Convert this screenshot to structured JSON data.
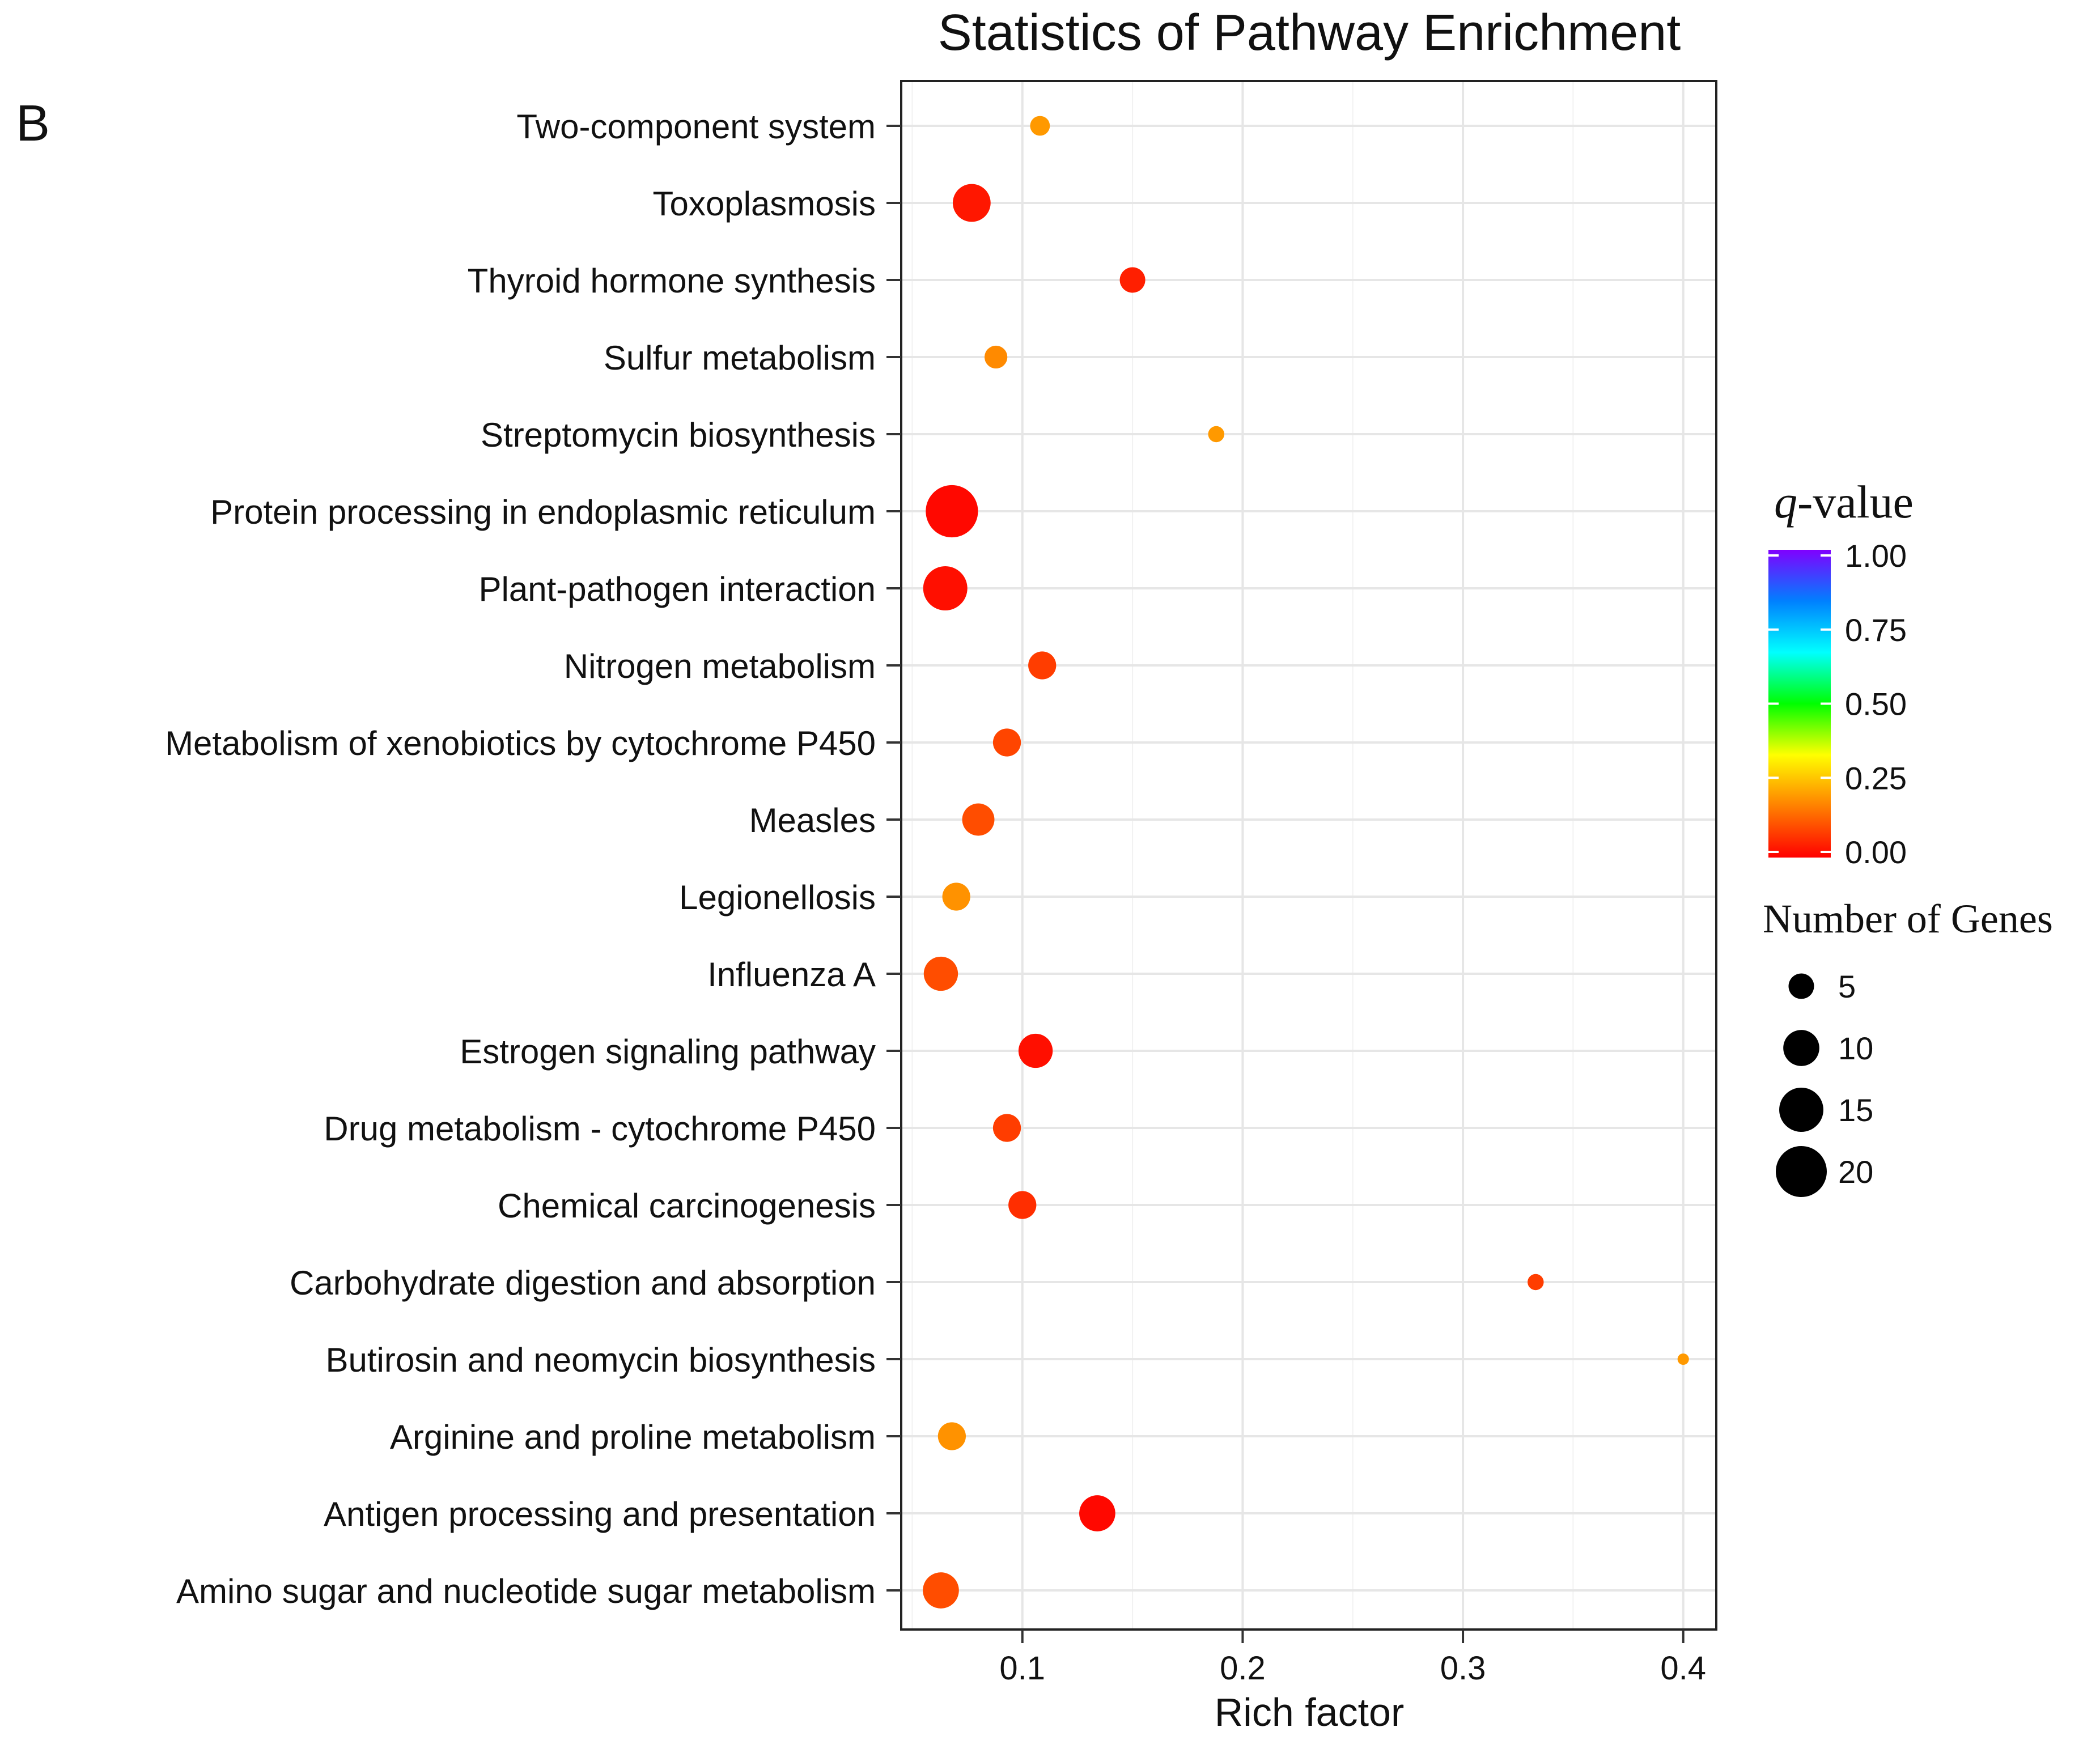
{
  "panel_label": "B",
  "chart_data": {
    "type": "scatter",
    "title": "Statistics of Pathway Enrichment",
    "xlabel": "Rich factor",
    "ylabel": "",
    "xlim": [
      0.045,
      0.415
    ],
    "xticks": [
      0.1,
      0.2,
      0.3,
      0.4
    ],
    "xtick_labels": [
      "0.1",
      "0.2",
      "0.3",
      "0.4"
    ],
    "grid": true,
    "categories": [
      "Two-component system",
      "Toxoplasmosis",
      "Thyroid hormone synthesis",
      "Sulfur metabolism",
      "Streptomycin biosynthesis",
      "Protein processing in endoplasmic reticulum",
      "Plant-pathogen interaction",
      "Nitrogen metabolism",
      "Metabolism of xenobiotics by cytochrome P450",
      "Measles",
      "Legionellosis",
      "Influenza A",
      "Estrogen signaling pathway",
      "Drug metabolism - cytochrome P450",
      "Chemical carcinogenesis",
      "Carbohydrate digestion and absorption",
      "Butirosin and neomycin biosynthesis",
      "Arginine and proline metabolism",
      "Antigen processing and presentation",
      "Amino sugar and nucleotide sugar metabolism"
    ],
    "rich_factor": [
      0.108,
      0.077,
      0.15,
      0.088,
      0.188,
      0.068,
      0.065,
      0.109,
      0.093,
      0.08,
      0.07,
      0.063,
      0.106,
      0.093,
      0.1,
      0.333,
      0.4,
      0.068,
      0.134,
      0.063
    ],
    "gene_count": [
      3,
      11,
      5,
      4,
      2,
      21,
      15,
      6,
      6,
      8,
      6,
      9,
      9,
      6,
      6,
      2,
      1,
      6,
      10,
      10
    ],
    "q_value": [
      0.2,
      0.03,
      0.04,
      0.18,
      0.2,
      0.01,
      0.02,
      0.08,
      0.09,
      0.1,
      0.19,
      0.1,
      0.02,
      0.08,
      0.06,
      0.08,
      0.2,
      0.19,
      0.01,
      0.1
    ],
    "legend_color": {
      "title_italic": "q",
      "title_rest": "-value",
      "ticks": [
        "1.00",
        "0.75",
        "0.50",
        "0.25",
        "0.00"
      ],
      "gradient_colors": [
        "#ff0000",
        "#ff8000",
        "#ffff00",
        "#00ff00",
        "#00ffff",
        "#0080ff",
        "#8000ff"
      ],
      "placement": "right"
    },
    "legend_size": {
      "title": "Number of Genes",
      "values": [
        5,
        10,
        15,
        20
      ],
      "labels": [
        "5",
        "10",
        "15",
        "20"
      ],
      "placement": "right"
    }
  }
}
